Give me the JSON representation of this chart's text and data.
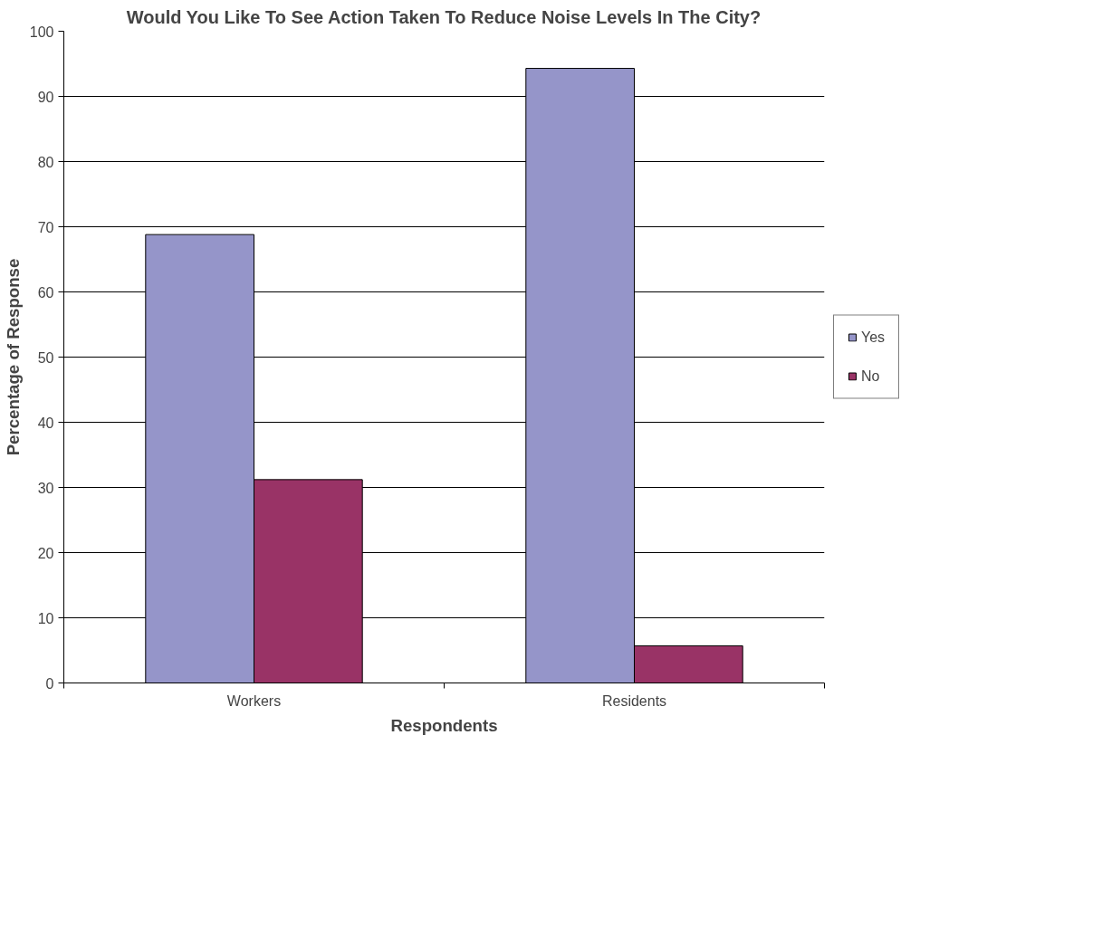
{
  "chart_data": {
    "type": "bar",
    "title": "Would You Like To See Action Taken To Reduce Noise Levels In The City?",
    "xlabel": "Respondents",
    "ylabel": "Percentage of Response",
    "categories": [
      "Workers",
      "Residents"
    ],
    "series": [
      {
        "name": "Yes",
        "color": "#9595c9",
        "values": [
          68.8,
          94.3
        ]
      },
      {
        "name": "No",
        "color": "#993366",
        "values": [
          31.2,
          5.7
        ]
      }
    ],
    "ylim": [
      0,
      100
    ],
    "yticks": [
      0,
      10,
      20,
      30,
      40,
      50,
      60,
      70,
      80,
      90,
      100
    ],
    "grid": "y",
    "legend": "right"
  }
}
